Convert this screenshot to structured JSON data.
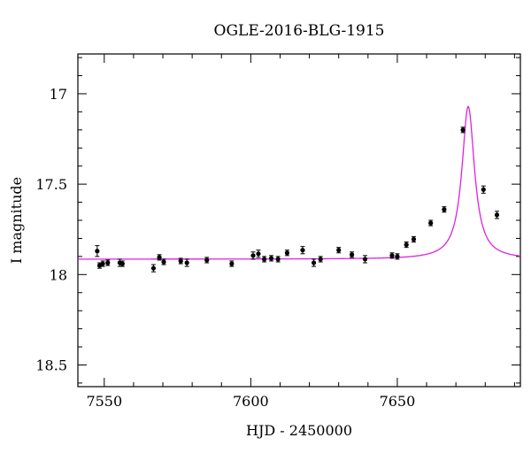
{
  "chart_data": {
    "type": "scatter",
    "title": "OGLE-2016-BLG-1915",
    "xlabel": "HJD - 2450000",
    "ylabel": "I magnitude",
    "xlim": [
      7541,
      7692
    ],
    "ylim": [
      18.62,
      16.78
    ],
    "y_inverted": true,
    "grid": false,
    "model_color": "#e020e0",
    "point_color": "#000000",
    "x_ticks": [
      7550,
      7600,
      7650
    ],
    "y_ticks": [
      17,
      17.5,
      18,
      18.5
    ],
    "x_tick_labels": [
      "7550",
      "7600",
      "7650"
    ],
    "y_tick_labels": [
      "17",
      "17.5",
      "18",
      "18.5"
    ],
    "model": {
      "baseline_mag": 17.915,
      "peak_time": 7674.2,
      "peak_mag": 17.07,
      "description_label": ""
    },
    "series": [
      {
        "points": [
          {
            "x": 7547.6,
            "y": 17.87,
            "err": 0.03
          },
          {
            "x": 7548.4,
            "y": 17.95,
            "err": 0.015
          },
          {
            "x": 7549.5,
            "y": 17.94,
            "err": 0.015
          },
          {
            "x": 7551.2,
            "y": 17.935,
            "err": 0.015
          },
          {
            "x": 7555.3,
            "y": 17.935,
            "err": 0.02
          },
          {
            "x": 7556.2,
            "y": 17.94,
            "err": 0.015
          },
          {
            "x": 7566.8,
            "y": 17.965,
            "err": 0.02
          },
          {
            "x": 7568.8,
            "y": 17.905,
            "err": 0.015
          },
          {
            "x": 7570.3,
            "y": 17.93,
            "err": 0.015
          },
          {
            "x": 7576.1,
            "y": 17.925,
            "err": 0.015
          },
          {
            "x": 7578.2,
            "y": 17.935,
            "err": 0.02
          },
          {
            "x": 7585.0,
            "y": 17.92,
            "err": 0.015
          },
          {
            "x": 7593.5,
            "y": 17.94,
            "err": 0.015
          },
          {
            "x": 7600.8,
            "y": 17.895,
            "err": 0.02
          },
          {
            "x": 7602.6,
            "y": 17.885,
            "err": 0.02
          },
          {
            "x": 7604.6,
            "y": 17.915,
            "err": 0.015
          },
          {
            "x": 7607.0,
            "y": 17.91,
            "err": 0.015
          },
          {
            "x": 7609.3,
            "y": 17.915,
            "err": 0.015
          },
          {
            "x": 7612.4,
            "y": 17.88,
            "err": 0.015
          },
          {
            "x": 7617.7,
            "y": 17.865,
            "err": 0.02
          },
          {
            "x": 7621.5,
            "y": 17.935,
            "err": 0.02
          },
          {
            "x": 7623.8,
            "y": 17.915,
            "err": 0.015
          },
          {
            "x": 7630.0,
            "y": 17.865,
            "err": 0.015
          },
          {
            "x": 7634.5,
            "y": 17.89,
            "err": 0.015
          },
          {
            "x": 7639.0,
            "y": 17.915,
            "err": 0.02
          },
          {
            "x": 7648.2,
            "y": 17.895,
            "err": 0.015
          },
          {
            "x": 7650.0,
            "y": 17.9,
            "err": 0.015
          },
          {
            "x": 7653.1,
            "y": 17.835,
            "err": 0.015
          },
          {
            "x": 7655.6,
            "y": 17.805,
            "err": 0.015
          },
          {
            "x": 7661.4,
            "y": 17.715,
            "err": 0.015
          },
          {
            "x": 7666.0,
            "y": 17.64,
            "err": 0.015
          },
          {
            "x": 7672.4,
            "y": 17.2,
            "err": 0.015
          },
          {
            "x": 7679.4,
            "y": 17.53,
            "err": 0.02
          },
          {
            "x": 7684.0,
            "y": 17.67,
            "err": 0.02
          }
        ]
      }
    ]
  }
}
